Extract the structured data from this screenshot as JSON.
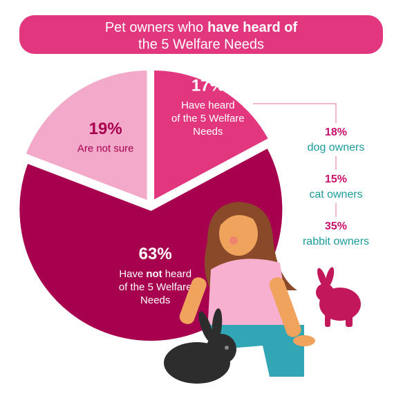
{
  "chart_data": {
    "type": "pie",
    "title": {
      "lead": "Pet owners who",
      "emphasis": "have heard of",
      "tail": "the 5 Welfare Needs"
    },
    "values": [
      17,
      63,
      19
    ],
    "value_labels": [
      "17%",
      "63%",
      "19%"
    ],
    "colors": [
      "#e2377f",
      "#a6004f",
      "#f3a9c9"
    ],
    "descriptions": [
      [
        "Have heard",
        "of the 5 Welfare",
        "Needs"
      ],
      [
        [
          "Have",
          "not",
          "heard"
        ],
        "of the 5 Welfare",
        "Needs"
      ],
      [
        "Are not sure"
      ]
    ],
    "breakdown": [
      {
        "label": "18%",
        "group": "dog owners"
      },
      {
        "label": "15%",
        "group": "cat owners"
      },
      {
        "label": "35%",
        "group": "rabbit owners"
      }
    ]
  }
}
